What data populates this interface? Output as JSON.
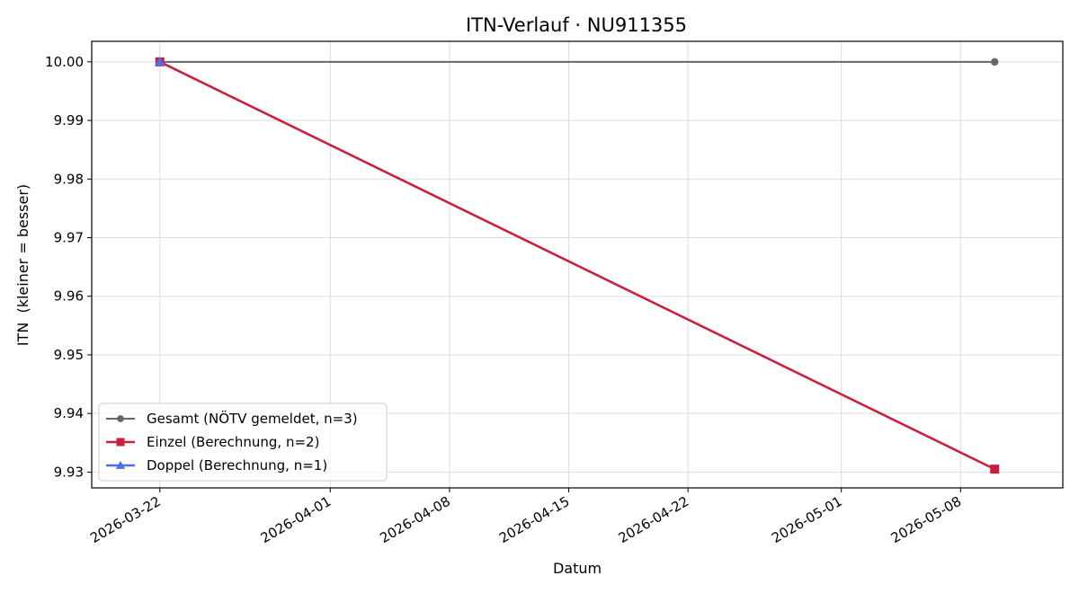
{
  "chart_data": {
    "type": "line",
    "title": "ITN-Verlauf · NU911355",
    "xlabel": "Datum",
    "ylabel": "ITN  (kleiner = besser)",
    "x_type": "date",
    "xlim": [
      "2026-03-18",
      "2026-05-14"
    ],
    "ylim": [
      9.9273,
      10.0035
    ],
    "x_ticks": [
      "2026-03-22",
      "2026-04-01",
      "2026-04-08",
      "2026-04-15",
      "2026-04-22",
      "2026-05-01",
      "2026-05-08"
    ],
    "y_ticks": [
      "9.93",
      "9.94",
      "9.95",
      "9.96",
      "9.97",
      "9.98",
      "9.99",
      "10.00"
    ],
    "grid": true,
    "legend_position": "lower-left",
    "series": [
      {
        "name": "Gesamt (NÖTV gemeldet, n=3)",
        "color": "#666666",
        "marker": "circle",
        "line_width": 2,
        "points": [
          {
            "x": "2026-03-22",
            "y": 10.0
          },
          {
            "x": "2026-05-10",
            "y": 10.0
          }
        ]
      },
      {
        "name": "Einzel (Berechnung, n=2)",
        "color": "#c8203f",
        "marker": "square",
        "line_width": 2.6,
        "points": [
          {
            "x": "2026-03-22",
            "y": 10.0
          },
          {
            "x": "2026-05-10",
            "y": 9.9305
          }
        ]
      },
      {
        "name": "Doppel (Berechnung, n=1)",
        "color": "#4f6fe8",
        "marker": "triangle",
        "line_width": 2.6,
        "points": [
          {
            "x": "2026-03-22",
            "y": 10.0
          }
        ]
      }
    ]
  }
}
